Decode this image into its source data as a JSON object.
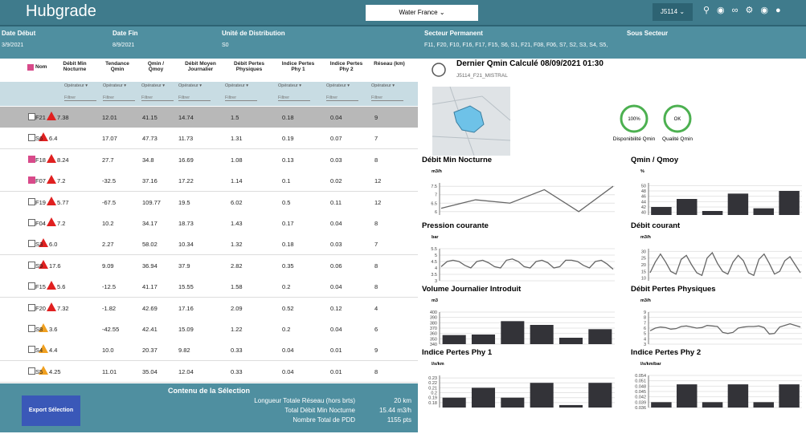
{
  "header": {
    "logo": "Hubgrade",
    "org": "Water France",
    "user": "J5114"
  },
  "filters": [
    {
      "label": "Date Début",
      "value": "3/9/2021"
    },
    {
      "label": "Date Fin",
      "value": "8/9/2021"
    },
    {
      "label": "Unité de Distribution",
      "value": "S0"
    },
    {
      "label": "Secteur Permanent",
      "value": "F11, F20, F10, F16, F17, F15, S6, S1, F21, F08, F06, S7, S2, S3, S4, S5,"
    },
    {
      "label": "Sous Secteur",
      "value": ""
    }
  ],
  "table": {
    "columns": [
      "Nom",
      "Débit Min Nocturne",
      "Tendance Qmin",
      "Qmin / Qmoy",
      "Débit Moyen Journalier",
      "Débit Pertes Physiques",
      "Indice Pertes Phy 1",
      "Indice Pertes Phy 2",
      "Réseau (km)"
    ],
    "operator": "Opérateur",
    "filter": "Filtrer",
    "rows": [
      {
        "cells": [
          "F21",
          "7.38",
          "12.01",
          "41.15",
          "14.74",
          "1.5",
          "0.18",
          "0.04",
          "9"
        ],
        "checked": false,
        "alert": "#e02020",
        "selected": true
      },
      {
        "cells": [
          "S6",
          "6.4",
          "17.07",
          "47.73",
          "11.73",
          "1.31",
          "0.19",
          "0.07",
          "7"
        ],
        "checked": false,
        "alert": "#e02020",
        "selected": false
      },
      {
        "cells": [
          "F18",
          "8.24",
          "27.7",
          "34.8",
          "16.69",
          "1.08",
          "0.13",
          "0.03",
          "8"
        ],
        "checked": true,
        "alert": "#e02020",
        "selected": false
      },
      {
        "cells": [
          "F07",
          "7.2",
          "-32.5",
          "37.16",
          "17.22",
          "1.14",
          "0.1",
          "0.02",
          "12"
        ],
        "checked": true,
        "alert": "#e02020",
        "selected": false
      },
      {
        "cells": [
          "F19",
          "5.77",
          "-67.5",
          "109.77",
          "19.5",
          "6.02",
          "0.5",
          "0.11",
          "12"
        ],
        "checked": false,
        "alert": "#e02020",
        "selected": false
      },
      {
        "cells": [
          "F04",
          "7.2",
          "10.2",
          "34.17",
          "18.73",
          "1.43",
          "0.17",
          "0.04",
          "8"
        ],
        "checked": false,
        "alert": "#e02020",
        "selected": false
      },
      {
        "cells": [
          "S3",
          "6.0",
          "2.27",
          "58.02",
          "10.34",
          "1.32",
          "0.18",
          "0.03",
          "7"
        ],
        "checked": false,
        "alert": "#e02020",
        "selected": false
      },
      {
        "cells": [
          "S9",
          "17.6",
          "9.09",
          "36.94",
          "37.9",
          "2.82",
          "0.35",
          "0.06",
          "8"
        ],
        "checked": false,
        "alert": "#e02020",
        "selected": false
      },
      {
        "cells": [
          "F15",
          "5.6",
          "-12.5",
          "41.17",
          "15.55",
          "1.58",
          "0.2",
          "0.04",
          "8"
        ],
        "checked": false,
        "alert": "#e02020",
        "selected": false
      },
      {
        "cells": [
          "F20",
          "7.32",
          "-1.82",
          "42.69",
          "17.16",
          "2.09",
          "0.52",
          "0.12",
          "4"
        ],
        "checked": false,
        "alert": "#e02020",
        "selected": false
      },
      {
        "cells": [
          "S8",
          "3.6",
          "-42.55",
          "42.41",
          "15.09",
          "1.22",
          "0.2",
          "0.04",
          "6"
        ],
        "checked": false,
        "alert": "#f0a020",
        "selected": false
      },
      {
        "cells": [
          "S4",
          "4.4",
          "10.0",
          "20.37",
          "9.82",
          "0.33",
          "0.04",
          "0.01",
          "9"
        ],
        "checked": false,
        "alert": "#f0a020",
        "selected": false
      },
      {
        "cells": [
          "S5",
          "4.25",
          "11.01",
          "35.04",
          "12.04",
          "0.33",
          "0.04",
          "0.01",
          "8"
        ],
        "checked": false,
        "alert": "#f0a020",
        "selected": false
      }
    ]
  },
  "selection": {
    "title": "Contenu de la Sélection",
    "button": "Export Sélection",
    "items": [
      {
        "label": "Longueur Totale Réseau (hors brts)",
        "value": "20 km"
      },
      {
        "label": "Total Débit Min Nocturne",
        "value": "15.44 m3/h"
      },
      {
        "label": "Nombre Total de PDD",
        "value": "1155 pts"
      }
    ]
  },
  "panel": {
    "title": "Dernier Qmin Calculé 08/09/2021 01:30",
    "subtitle": "J5114_F21_MISTRAL",
    "indicators": [
      {
        "value": "100%",
        "label": "Disponibilité Qmin"
      },
      {
        "value": "OK",
        "label": "Qualité Qmin"
      }
    ]
  },
  "chart_data": [
    {
      "type": "line",
      "title": "Débit Min Nocturne",
      "unit": "m3/h",
      "values": [
        6.2,
        6.7,
        6.5,
        7.3,
        6.0,
        7.5
      ],
      "ylim": [
        5.8,
        7.7
      ],
      "yticks": [
        6,
        6.5,
        7,
        7.5
      ],
      "color": "#666666"
    },
    {
      "type": "bar",
      "title": "Qmin / Qmoy",
      "unit": "%",
      "values": [
        42,
        45,
        40.5,
        47,
        41.5,
        48
      ],
      "ylim": [
        39,
        51
      ],
      "yticks": [
        40,
        42,
        44,
        46,
        48,
        50
      ],
      "color": "#333338"
    },
    {
      "type": "line",
      "title": "Pression courante",
      "unit": "bar",
      "values": [
        4.1,
        4.5,
        4.6,
        4.5,
        4.2,
        4.0,
        4.5,
        4.6,
        4.4,
        4.1,
        4.0,
        4.6,
        4.7,
        4.5,
        4.1,
        4.0,
        4.5,
        4.6,
        4.4,
        4.0,
        4.1,
        4.6,
        4.6,
        4.5,
        4.2,
        4.0,
        4.5,
        4.6,
        4.3,
        3.9
      ],
      "ylim": [
        3,
        5.5
      ],
      "yticks": [
        3,
        3.5,
        4,
        4.5,
        5,
        5.5
      ],
      "color": "#666666"
    },
    {
      "type": "line",
      "title": "Débit courant",
      "unit": "m3/h",
      "values": [
        14,
        22,
        28,
        22,
        15,
        13,
        24,
        27,
        20,
        14,
        12,
        25,
        29,
        21,
        15,
        13,
        22,
        27,
        23,
        14,
        12,
        24,
        28,
        21,
        13,
        15,
        23,
        26,
        20,
        14
      ],
      "ylim": [
        8,
        32
      ],
      "yticks": [
        10,
        15,
        20,
        25,
        30
      ],
      "color": "#666666"
    },
    {
      "type": "bar",
      "title": "Volume Journalier Introduit",
      "unit": "m3",
      "values": [
        357,
        358,
        383,
        376,
        352,
        368
      ],
      "ylim": [
        340,
        400
      ],
      "yticks": [
        340,
        350,
        360,
        370,
        380,
        390,
        400
      ],
      "color": "#333338"
    },
    {
      "type": "line",
      "title": "Débit Pertes Physiques",
      "unit": "m3/h",
      "values": [
        5.5,
        6.0,
        6.2,
        6.1,
        5.8,
        5.9,
        6.3,
        6.4,
        6.2,
        6.0,
        6.1,
        6.5,
        6.4,
        6.3,
        5.2,
        5.0,
        5.2,
        6.0,
        6.2,
        6.3,
        6.3,
        6.4,
        6.1,
        4.9,
        5.0,
        6.2,
        6.5,
        6.8,
        6.5,
        6.2
      ],
      "ylim": [
        3,
        9
      ],
      "yticks": [
        3,
        4,
        5,
        6,
        7,
        8,
        9
      ],
      "color": "#666666"
    },
    {
      "type": "bar",
      "title": "Indice Pertes Phy 1",
      "unit": "l/s/km",
      "values": [
        0.19,
        0.21,
        0.19,
        0.22,
        0.175,
        0.22
      ],
      "ylim": [
        0.17,
        0.235
      ],
      "yticks": [
        0.18,
        0.19,
        0.2,
        0.21,
        0.22,
        0.23
      ],
      "color": "#333338"
    },
    {
      "type": "bar",
      "title": "Indice Pertes Phy 2",
      "unit": "l/s/km/bar",
      "values": [
        0.039,
        0.049,
        0.039,
        0.049,
        0.039,
        0.049
      ],
      "ylim": [
        0.036,
        0.054
      ],
      "yticks": [
        0.036,
        0.039,
        0.042,
        0.045,
        0.048,
        0.051,
        0.054
      ],
      "color": "#333338"
    }
  ]
}
